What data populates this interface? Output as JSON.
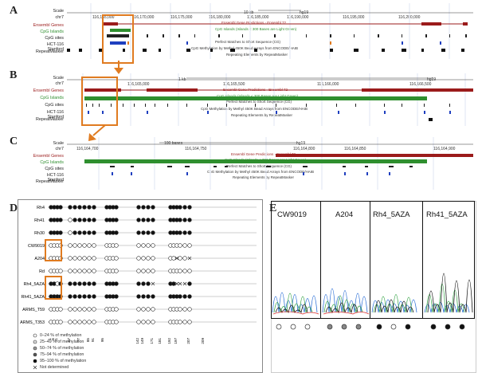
{
  "panels": {
    "A": {
      "letter": "A"
    },
    "B": {
      "letter": "B"
    },
    "C": {
      "letter": "C"
    },
    "D": {
      "letter": "D"
    },
    "E": {
      "letter": "E"
    }
  },
  "browserA": {
    "scale_label": "Scale",
    "chrom_label": "chr7",
    "scale_text": "10 kb",
    "assembly": "hg19",
    "coords": [
      "116,165,000",
      "116,170,000",
      "116,175,000",
      "116,180,000",
      "116,185,000",
      "116,190,000",
      "116,195,000",
      "116,200,000"
    ],
    "tracks": [
      "Ensembl Genes",
      "CpG Islands",
      "CpG sites",
      "HCT-116 Stanford",
      "RepeatMasker"
    ],
    "track_titles": [
      "Ensembl Gene Predictions - Ensembl 72",
      "CpG Islands (Islands < 300 Bases are Light Green)",
      "Perfect Matches to Short Sequence (CG)",
      "CpG Methylation by Methyl 450K Bead Arrays from ENCODE/HAIB",
      "Repeating Elements by RepeatMasker"
    ]
  },
  "browserB": {
    "scale_label": "Scale",
    "chrom_label": "chr7",
    "scale_text": "1 kb",
    "assembly": "hg19",
    "coords": [
      "116,165,000",
      "116,165,500",
      "116,166,000",
      "116,166,500"
    ],
    "tracks": [
      "Ensembl Genes",
      "CpG Islands",
      "CpG sites",
      "HCT-116 Stanford",
      "RepeatMasker"
    ],
    "track_titles": [
      "Ensembl Gene Predictions - Ensembl 72",
      "CpG Islands (Islands < 300 Bases are Light Green)",
      "Perfect Matches to Short Sequence (CG)",
      "CpG Methylation by Methyl 450K Bead Arrays from ENCODE/HAIB",
      "Repeating Elements by RepeatMasker"
    ]
  },
  "browserC": {
    "scale_label": "Scale",
    "chrom_label": "chr7",
    "scale_text": "100 bases",
    "assembly": "hg19",
    "coords": [
      "116,164,700",
      "116,164,750",
      "116,164,800",
      "116,164,850",
      "116,164,900"
    ],
    "tracks": [
      "Ensembl Genes",
      "CpG Islands",
      "CpG sites",
      "HCT-116 Stanford",
      "RepeatMasker"
    ],
    "track_titles": [
      "Ensembl Gene Predictions - Ensembl 72",
      "CpG Islands (Islands < 300 Bases are Light Green)",
      "Perfect Matches to Short Sequence (CG)",
      "CpG Methylation by Methyl 450K Bead Arrays from ENCODE/HAIB",
      "Repeating Elements by RepeatMasker"
    ]
  },
  "lollipop": {
    "samples": [
      "Rh4",
      "Rh41",
      "Rh30",
      "CW9019",
      "A204",
      "Rd",
      "Rh4_5AZA",
      "Rh41_5AZA",
      "ARMS_T59",
      "ARMS_T353"
    ],
    "positions": [
      "1",
      "5",
      "11",
      "67",
      "77",
      "85",
      "91",
      "95",
      "142",
      "149",
      "171",
      "181",
      "192",
      "197",
      "207",
      "209"
    ],
    "legend": [
      {
        "symbol": "open",
        "label": "0–24 % of methylation"
      },
      {
        "symbol": "light",
        "label": "25–49 % of methylation"
      },
      {
        "symbol": "mid",
        "label": "50–74 % of methylation"
      },
      {
        "symbol": "dark",
        "label": "75–94 % of methylation"
      },
      {
        "symbol": "full",
        "label": "95–100 % of methylation"
      },
      {
        "symbol": "cross",
        "label": "Not determined"
      }
    ],
    "matrix": [
      [
        "full",
        "full",
        "full",
        "full",
        "full",
        "full",
        "full",
        "full",
        "full",
        "full",
        "full",
        "full",
        "full",
        "full",
        "full",
        "full",
        "full",
        "full",
        "full",
        "full",
        "full",
        "full",
        "full",
        "full"
      ],
      [
        "full",
        "full",
        "full",
        "full",
        "open",
        "full",
        "full",
        "full",
        "full",
        "full",
        "full",
        "full",
        "full",
        "full",
        "full",
        "full",
        "full",
        "full",
        "full",
        "full",
        "full",
        "full",
        "full",
        "full"
      ],
      [
        "full",
        "full",
        "full",
        "full",
        "open",
        "full",
        "full",
        "full",
        "full",
        "full",
        "full",
        "full",
        "full",
        "full",
        "full",
        "full",
        "full",
        "full",
        "full",
        "full",
        "full",
        "full",
        "full",
        "full"
      ],
      [
        "open",
        "open",
        "open",
        "open",
        "open",
        "open",
        "open",
        "open",
        "open",
        "open",
        "open",
        "open",
        "open",
        "open",
        "open",
        "open",
        "open",
        "open",
        "open",
        "open",
        "open",
        "open",
        "open",
        "open"
      ],
      [
        "open",
        "open",
        "open",
        "open",
        "open",
        "open",
        "open",
        "open",
        "open",
        "open",
        "open",
        "open",
        "open",
        "open",
        "open",
        "open",
        "open",
        "open",
        "open",
        "open",
        "cross",
        "open",
        "open",
        "cross"
      ],
      [
        "open",
        "open",
        "open",
        "open",
        "open",
        "open",
        "open",
        "open",
        "open",
        "open",
        "open",
        "open",
        "open",
        "open",
        "open",
        "open",
        "open",
        "open",
        "open",
        "open",
        "open",
        "open",
        "open",
        "open"
      ],
      [
        "full",
        "full",
        "open",
        "full",
        "full",
        "full",
        "full",
        "full",
        "full",
        "full",
        "full",
        "full",
        "full",
        "full",
        "full",
        "full",
        "full",
        "cross",
        "full",
        "full",
        "cross",
        "cross",
        "cross",
        "full"
      ],
      [
        "full",
        "full",
        "full",
        "full",
        "full",
        "full",
        "full",
        "full",
        "full",
        "full",
        "full",
        "full",
        "full",
        "full",
        "full",
        "full",
        "full",
        "full",
        "full",
        "full",
        "full",
        "full",
        "full",
        "full"
      ],
      [
        "open",
        "open",
        "open",
        "open",
        "open",
        "open",
        "open",
        "open",
        "open",
        "open",
        "open",
        "open",
        "open",
        "open",
        "open",
        "open",
        "open",
        "open",
        "open",
        "open",
        "open",
        "open",
        "open",
        "open"
      ],
      [
        "open",
        "open",
        "open",
        "open",
        "open",
        "open",
        "open",
        "open",
        "open",
        "open",
        "open",
        "open",
        "open",
        "open",
        "open",
        "open",
        "open",
        "open",
        "open",
        "open",
        "open",
        "open",
        "open",
        "open"
      ]
    ]
  },
  "sequencing": {
    "labels": [
      "CW9019",
      "A204",
      "Rh4_5AZA",
      "Rh41_5AZA"
    ],
    "cpg_markers": [
      [
        "open",
        "open",
        "open"
      ],
      [
        "mid",
        "mid",
        "mid"
      ],
      [
        "full",
        "open",
        "full"
      ],
      [
        "full",
        "full",
        "full"
      ]
    ]
  },
  "colors": {
    "orange": "#e07b20",
    "gene_red": "#9b1b1b",
    "cpg_green": "#2f8f2f",
    "grid_blue": "#dfe4f3"
  }
}
